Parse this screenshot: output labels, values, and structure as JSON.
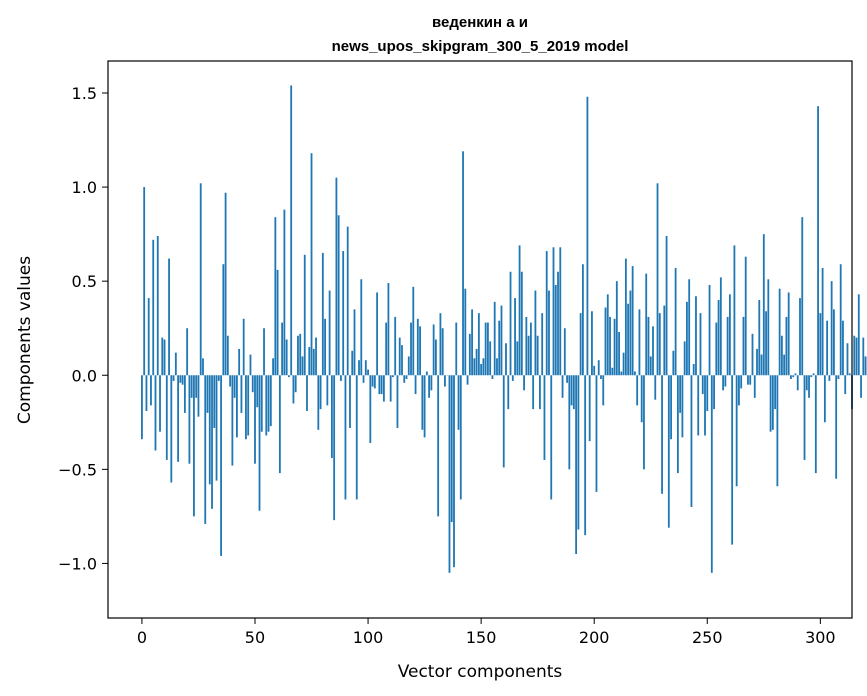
{
  "chart_data": {
    "type": "bar",
    "title_lines": [
      "веденкин а и",
      "news_upos_skipgram_300_5_2019 model"
    ],
    "xlabel": "Vector components",
    "ylabel": "Components values",
    "xlim": [
      -15,
      314
    ],
    "ylim": [
      -1.29,
      1.67
    ],
    "xticks": [
      0,
      50,
      100,
      150,
      200,
      250,
      300
    ],
    "xtick_labels": [
      "0",
      "50",
      "100",
      "150",
      "200",
      "250",
      "300"
    ],
    "yticks": [
      -1.0,
      -0.5,
      0.0,
      0.5,
      1.0,
      1.5
    ],
    "ytick_labels": [
      "−1.0",
      "−0.5",
      "0.0",
      "0.5",
      "1.0",
      "1.5"
    ],
    "bar_color": "#1f77b4",
    "grid": false,
    "values": [
      -0.34,
      1.0,
      -0.19,
      0.41,
      -0.16,
      0.72,
      -0.4,
      0.74,
      -0.3,
      0.2,
      0.19,
      -0.45,
      0.62,
      -0.57,
      -0.03,
      0.12,
      -0.46,
      -0.04,
      -0.05,
      -0.2,
      0.25,
      -0.47,
      -0.12,
      -0.75,
      -0.12,
      -0.22,
      1.02,
      0.09,
      -0.79,
      -0.2,
      -0.58,
      -0.71,
      -0.28,
      -0.56,
      -0.03,
      -0.96,
      0.59,
      0.97,
      0.21,
      -0.06,
      -0.48,
      -0.12,
      -0.33,
      0.14,
      -0.2,
      0.3,
      -0.34,
      -0.32,
      0.11,
      -0.09,
      -0.47,
      -0.17,
      -0.72,
      -0.3,
      0.25,
      -0.32,
      -0.3,
      -0.27,
      0.09,
      0.84,
      0.56,
      -0.52,
      0.28,
      0.88,
      0.19,
      -0.01,
      1.54,
      -0.15,
      -0.09,
      0.21,
      0.22,
      0.1,
      0.64,
      -0.19,
      0.15,
      1.18,
      0.14,
      0.2,
      -0.29,
      -0.18,
      0.65,
      0.3,
      -0.16,
      0.45,
      -0.44,
      -0.77,
      1.05,
      0.85,
      -0.03,
      0.66,
      -0.66,
      0.79,
      -0.28,
      0.13,
      0.35,
      -0.66,
      0.08,
      0.51,
      -0.04,
      0.08,
      0.03,
      -0.36,
      -0.06,
      -0.07,
      0.44,
      -0.1,
      -0.1,
      -0.14,
      0.28,
      0.49,
      -0.14,
      -0.01,
      0.31,
      -0.28,
      0.2,
      0.16,
      -0.04,
      -0.02,
      0.1,
      0.28,
      0.47,
      -0.1,
      0.3,
      0.26,
      -0.29,
      -0.33,
      0.02,
      -0.12,
      -0.08,
      0.27,
      0.19,
      -0.75,
      0.33,
      0.25,
      -0.06,
      0.0,
      -1.05,
      -0.78,
      -1.02,
      0.28,
      -0.29,
      -0.66,
      1.19,
      0.46,
      -0.05,
      0.22,
      0.35,
      0.09,
      0.14,
      0.33,
      0.06,
      0.09,
      0.28,
      0.28,
      0.18,
      -0.02,
      0.39,
      0.09,
      0.29,
      0.37,
      -0.49,
      0.17,
      -0.18,
      0.55,
      -0.03,
      0.41,
      0.18,
      0.69,
      0.55,
      -0.08,
      0.31,
      0.21,
      0.28,
      -0.18,
      0.45,
      0.21,
      -0.18,
      0.33,
      -0.45,
      0.66,
      0.45,
      -0.66,
      0.68,
      0.48,
      0.55,
      0.68,
      -0.12,
      0.25,
      -0.04,
      -0.5,
      -0.16,
      -0.18,
      -0.95,
      -0.82,
      0.33,
      0.59,
      -0.85,
      1.48,
      -0.35,
      0.34,
      0.05,
      -0.62,
      0.08,
      -0.02,
      -0.16,
      0.36,
      0.43,
      0.31,
      0.04,
      0.3,
      0.5,
      0.23,
      0.02,
      0.12,
      0.62,
      0.38,
      0.45,
      0.58,
      0.02,
      -0.16,
      0.35,
      -0.25,
      -0.5,
      0.54,
      0.31,
      0.1,
      0.26,
      -0.13,
      1.02,
      0.33,
      -0.63,
      0.37,
      0.74,
      -0.81,
      -0.34,
      0.13,
      0.57,
      -0.52,
      -0.2,
      -0.33,
      0.18,
      0.39,
      0.51,
      -0.7,
      0.06,
      0.42,
      -0.32,
      0.33,
      -0.1,
      -0.32,
      -0.19,
      0.48,
      -1.05,
      -0.18,
      0.28,
      0.4,
      0.52,
      -0.08,
      -0.06,
      0.31,
      0.43,
      -0.9,
      0.69,
      -0.59,
      -0.16,
      -0.07,
      0.31,
      0.63,
      -0.05,
      -0.05,
      0.22,
      -0.12,
      0.14,
      0.4,
      0.11,
      0.75,
      0.34,
      0.51,
      -0.3,
      -0.29,
      -0.18,
      -0.59,
      0.46,
      0.21,
      0.11,
      0.31,
      0.44,
      -0.02,
      -0.01,
      0.01,
      -0.08,
      0.41,
      0.84,
      -0.45,
      -0.08,
      -0.12,
      -0.01,
      0.01,
      -0.52,
      1.43,
      0.33,
      0.57,
      -0.25,
      0.29,
      -0.03,
      0.5,
      0.35,
      -0.55,
      -0.02,
      0.59,
      0.29,
      -0.1,
      0.17,
      0.01,
      -0.18,
      0.21,
      0.2,
      0.43,
      -0.12,
      0.2,
      0.1
    ]
  }
}
